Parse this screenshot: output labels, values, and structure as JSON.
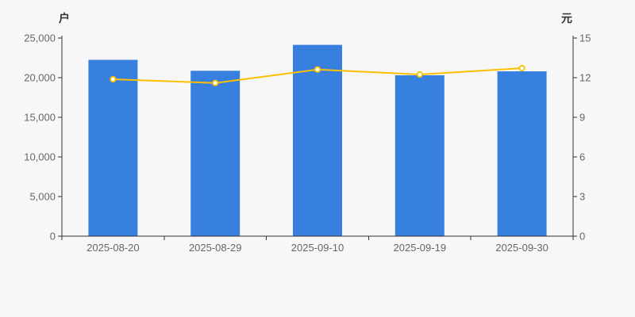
{
  "chart_data": {
    "type": "bar+line",
    "background": "#f7f7f7",
    "grid": false,
    "legend": "none",
    "axis_line_color": "#333333",
    "tick_label_color": "#666666",
    "categories": [
      "2025-08-20",
      "2025-08-29",
      "2025-09-10",
      "2025-09-19",
      "2025-09-30"
    ],
    "series": [
      {
        "type": "bar",
        "axis": "left",
        "unit": "户",
        "color": "#3780e0",
        "values": [
          22250,
          20870,
          24140,
          20300,
          20800
        ]
      },
      {
        "type": "line",
        "axis": "right",
        "unit": "元",
        "color": "#fcc000",
        "point_fill": "#ffffff",
        "values": [
          11.88,
          11.6,
          12.62,
          12.24,
          12.72
        ]
      }
    ],
    "left_axis": {
      "title": "户",
      "min": 0,
      "max": 25000,
      "step": 5000,
      "tick_labels": [
        "0",
        "5,000",
        "10,000",
        "15,000",
        "20,000",
        "25,000"
      ]
    },
    "right_axis": {
      "title": "元",
      "min": 0,
      "max": 15,
      "step": 3,
      "tick_labels": [
        "0",
        "3",
        "6",
        "9",
        "12",
        "15"
      ]
    }
  }
}
